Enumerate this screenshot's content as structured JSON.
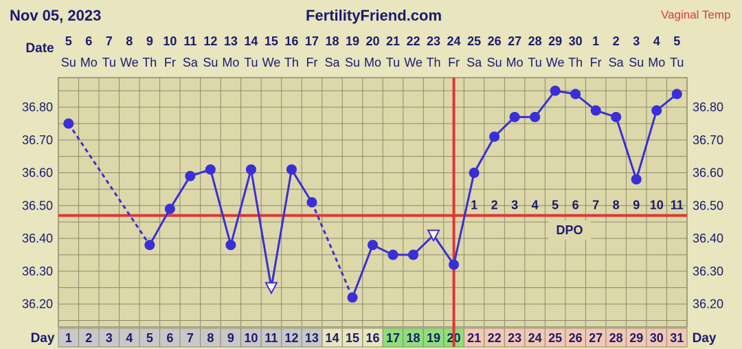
{
  "header": {
    "date": "Nov 05, 2023",
    "site": "FertilityFriend.com",
    "temp_type": "Vaginal Temp"
  },
  "labels": {
    "date_row": "Date",
    "day_row": "Day",
    "dpo": "DPO"
  },
  "colors": {
    "background": "#e8e5bf",
    "plot": "#dcd8aa",
    "grid": "#8d8a6c",
    "line": "#3a2fd6",
    "coverline": "#e03535",
    "text": "#1b1b6e",
    "day_gray": "#c8c8c8",
    "day_fertile": "#8ee07a",
    "day_luteal": "#f2c9b5"
  },
  "chart_data": {
    "type": "line",
    "x_dates": [
      "5",
      "6",
      "7",
      "8",
      "9",
      "10",
      "11",
      "12",
      "13",
      "14",
      "15",
      "16",
      "17",
      "18",
      "19",
      "20",
      "21",
      "22",
      "23",
      "24",
      "25",
      "26",
      "27",
      "28",
      "29",
      "30",
      "1",
      "2",
      "3",
      "4",
      "5"
    ],
    "x_days_of_week": [
      "Su",
      "Mo",
      "Tu",
      "We",
      "Th",
      "Fr",
      "Sa",
      "Su",
      "Mo",
      "Tu",
      "We",
      "Th",
      "Fr",
      "Sa",
      "Su",
      "Mo",
      "Tu",
      "We",
      "Th",
      "Fr",
      "Sa",
      "Su",
      "Mo",
      "Tu",
      "We",
      "Th",
      "Fr",
      "Sa",
      "Su",
      "Mo",
      "Tu"
    ],
    "cycle_days": [
      "1",
      "2",
      "3",
      "4",
      "5",
      "6",
      "7",
      "8",
      "9",
      "10",
      "11",
      "12",
      "13",
      "14",
      "15",
      "16",
      "17",
      "18",
      "19",
      "20",
      "21",
      "22",
      "23",
      "24",
      "25",
      "26",
      "27",
      "28",
      "29",
      "30",
      "31"
    ],
    "day_shading": [
      "gray",
      "gray",
      "gray",
      "gray",
      "gray",
      "gray",
      "gray",
      "gray",
      "gray",
      "gray",
      "gray",
      "gray",
      "gray",
      "none",
      "none",
      "none",
      "fertile",
      "fertile",
      "fertile",
      "fertile",
      "luteal",
      "luteal",
      "luteal",
      "luteal",
      "luteal",
      "luteal",
      "luteal",
      "luteal",
      "luteal",
      "luteal",
      "luteal"
    ],
    "temperatures": [
      36.75,
      null,
      null,
      null,
      36.38,
      36.49,
      36.59,
      36.61,
      36.38,
      36.61,
      36.25,
      36.61,
      36.51,
      null,
      36.22,
      36.38,
      36.35,
      36.35,
      36.41,
      36.32,
      36.6,
      36.71,
      36.77,
      36.77,
      36.85,
      36.84,
      36.79,
      36.77,
      36.58,
      36.79,
      36.84
    ],
    "discarded_days": [
      11,
      19
    ],
    "dotted_segments": [
      [
        1,
        5
      ],
      [
        13,
        15
      ]
    ],
    "coverline": 36.47,
    "ovulation_day": 20,
    "dpo_labels": [
      "1",
      "2",
      "3",
      "4",
      "5",
      "6",
      "7",
      "8",
      "9",
      "10",
      "11"
    ],
    "y_ticks": [
      "36.20",
      "36.30",
      "36.40",
      "36.50",
      "36.60",
      "36.70",
      "36.80"
    ],
    "ylim": [
      36.13,
      36.89
    ]
  }
}
